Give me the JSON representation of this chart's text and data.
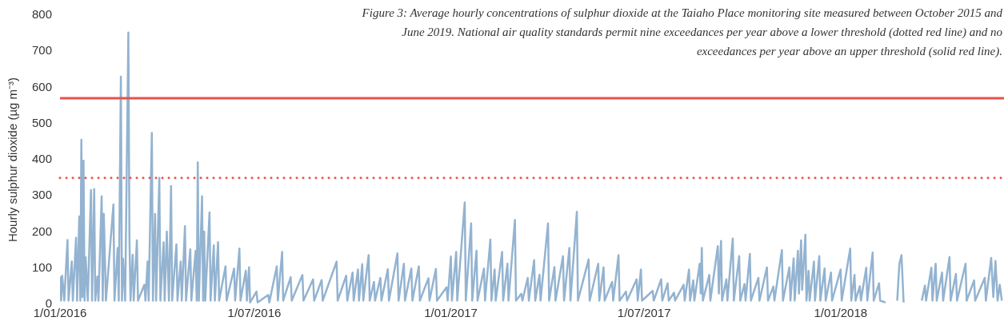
{
  "chart_data": {
    "type": "line",
    "title": "Figure 3: Average hourly concentrations of sulphur dioxide at the Taiaho Place monitoring site measured between October 2015 and June 2019. National air quality standards permit nine exceedances per year above a lower threshold (dotted red line) and no exceedances per year above an upper threshold (solid red line).",
    "ylabel": "Hourly sulphur dioxide (µg m⁻³)",
    "xlim": [
      "2016-01-01",
      "2018-06-03"
    ],
    "xticks": [
      {
        "value": "2016-01-01",
        "label": "1/01/2016"
      },
      {
        "value": "2016-07-01",
        "label": "1/07/2016"
      },
      {
        "value": "2017-01-01",
        "label": "1/01/2017"
      },
      {
        "value": "2017-07-01",
        "label": "1/07/2017"
      },
      {
        "value": "2018-01-01",
        "label": "1/01/2018"
      }
    ],
    "ylim": [
      0,
      800
    ],
    "yticks": [
      0,
      100,
      200,
      300,
      400,
      500,
      600,
      700,
      800
    ],
    "grid": false,
    "legend": false,
    "marker": "none",
    "line_style": "solid",
    "ref_lines": [
      {
        "axis": "y",
        "value": 570,
        "label": null,
        "color": "#e8524a",
        "line_style": "solid"
      },
      {
        "axis": "y",
        "value": 350,
        "label": null,
        "color": "#e8524a",
        "line_style": "dotted"
      }
    ],
    "series": [
      {
        "color": "#93b3d0",
        "x": [
          "2016-01-01",
          "2016-01-02",
          "2016-01-03",
          "2016-01-05",
          "2016-01-08",
          "2016-01-09",
          "2016-01-12",
          "2016-01-13",
          "2016-01-16",
          "2016-01-17",
          "2016-01-19",
          "2016-01-20",
          "2016-01-21",
          "2016-01-22",
          "2016-01-23",
          "2016-01-24",
          "2016-01-25",
          "2016-01-27",
          "2016-01-30",
          "2016-01-31",
          "2016-02-02",
          "2016-02-03",
          "2016-02-05",
          "2016-02-06",
          "2016-02-09",
          "2016-02-10",
          "2016-02-11",
          "2016-02-13",
          "2016-02-20",
          "2016-02-21",
          "2016-02-24",
          "2016-02-25",
          "2016-02-27",
          "2016-02-28",
          "2016-02-29",
          "2016-03-02",
          "2016-03-05",
          "2016-03-06",
          "2016-03-07",
          "2016-03-09",
          "2016-03-10",
          "2016-03-13",
          "2016-03-14",
          "2016-03-20",
          "2016-03-21",
          "2016-03-23",
          "2016-03-24",
          "2016-03-27",
          "2016-03-28",
          "2016-03-30",
          "2016-03-31",
          "2016-04-03",
          "2016-04-04",
          "2016-04-07",
          "2016-04-08",
          "2016-04-10",
          "2016-04-12",
          "2016-04-14",
          "2016-04-15",
          "2016-04-19",
          "2016-04-20",
          "2016-04-23",
          "2016-04-24",
          "2016-04-27",
          "2016-04-28",
          "2016-05-02",
          "2016-05-03",
          "2016-05-07",
          "2016-05-08",
          "2016-05-09",
          "2016-05-10",
          "2016-05-13",
          "2016-05-14",
          "2016-05-15",
          "2016-05-16",
          "2016-05-20",
          "2016-05-21",
          "2016-05-24",
          "2016-05-25",
          "2016-05-28",
          "2016-05-29",
          "2016-06-04",
          "2016-06-05",
          "2016-06-12",
          "2016-06-13",
          "2016-06-17",
          "2016-06-18",
          "2016-06-23",
          "2016-06-24",
          "2016-06-26",
          "2016-06-27",
          "2016-07-03",
          "2016-07-04",
          "2016-07-14",
          "2016-07-15",
          "2016-07-22",
          "2016-07-23",
          "2016-07-27",
          "2016-07-28",
          "2016-08-04",
          "2016-08-05",
          "2016-08-15",
          "2016-08-16",
          "2016-08-25",
          "2016-08-26",
          "2016-09-02",
          "2016-09-03",
          "2016-09-16",
          "2016-09-17",
          "2016-09-25",
          "2016-09-26",
          "2016-10-01",
          "2016-10-02",
          "2016-10-06",
          "2016-10-07",
          "2016-10-10",
          "2016-10-11",
          "2016-10-16",
          "2016-10-17",
          "2016-10-21",
          "2016-10-22",
          "2016-10-27",
          "2016-10-28",
          "2016-11-03",
          "2016-11-04",
          "2016-11-12",
          "2016-11-13",
          "2016-11-18",
          "2016-11-19",
          "2016-11-25",
          "2016-11-26",
          "2016-12-02",
          "2016-12-03",
          "2016-12-11",
          "2016-12-12",
          "2016-12-18",
          "2016-12-19",
          "2016-12-28",
          "2016-12-29",
          "2017-01-01",
          "2017-01-02",
          "2017-01-06",
          "2017-01-07",
          "2017-01-14",
          "2017-01-15",
          "2017-01-20",
          "2017-01-21",
          "2017-01-25",
          "2017-01-26",
          "2017-02-01",
          "2017-02-02",
          "2017-02-07",
          "2017-02-08",
          "2017-02-11",
          "2017-02-12",
          "2017-02-18",
          "2017-02-19",
          "2017-02-23",
          "2017-02-24",
          "2017-03-02",
          "2017-03-03",
          "2017-03-08",
          "2017-03-09",
          "2017-03-14",
          "2017-03-15",
          "2017-03-20",
          "2017-03-21",
          "2017-03-25",
          "2017-03-26",
          "2017-04-02",
          "2017-04-03",
          "2017-04-08",
          "2017-04-09",
          "2017-04-16",
          "2017-04-17",
          "2017-04-22",
          "2017-04-23",
          "2017-04-29",
          "2017-04-30",
          "2017-05-10",
          "2017-05-11",
          "2017-05-19",
          "2017-05-20",
          "2017-05-24",
          "2017-05-25",
          "2017-06-01",
          "2017-06-02",
          "2017-06-07",
          "2017-06-08",
          "2017-06-14",
          "2017-06-15",
          "2017-06-24",
          "2017-06-25",
          "2017-06-28",
          "2017-06-29",
          "2017-07-09",
          "2017-07-10",
          "2017-07-17",
          "2017-07-18",
          "2017-07-23",
          "2017-07-24",
          "2017-07-29",
          "2017-07-30",
          "2017-08-07",
          "2017-08-08",
          "2017-08-12",
          "2017-08-13",
          "2017-08-16",
          "2017-08-17",
          "2017-08-22",
          "2017-08-23",
          "2017-08-24",
          "2017-08-25",
          "2017-08-31",
          "2017-09-01",
          "2017-09-08",
          "2017-09-09",
          "2017-09-11",
          "2017-09-12",
          "2017-09-16",
          "2017-09-17",
          "2017-09-22",
          "2017-09-23",
          "2017-09-28",
          "2017-09-29",
          "2017-10-03",
          "2017-10-04",
          "2017-10-08",
          "2017-10-09",
          "2017-10-16",
          "2017-10-17",
          "2017-10-24",
          "2017-10-25",
          "2017-10-30",
          "2017-10-31",
          "2017-11-07",
          "2017-11-08",
          "2017-11-14",
          "2017-11-15",
          "2017-11-18",
          "2017-11-19",
          "2017-11-22",
          "2017-11-23",
          "2017-11-25",
          "2017-11-26",
          "2017-11-29",
          "2017-11-30",
          "2017-12-02",
          "2017-12-03",
          "2017-12-07",
          "2017-12-08",
          "2017-12-12",
          "2017-12-13",
          "2017-12-17",
          "2017-12-18",
          "2017-12-23",
          "2017-12-24",
          "2018-01-01",
          "2018-01-02",
          "2018-01-10",
          "2018-01-11",
          "2018-01-14",
          "2018-01-15",
          "2018-01-19",
          "2018-01-20",
          "2018-01-25",
          "2018-01-26",
          "2018-01-31",
          "2018-02-01",
          "2018-02-06",
          "2018-02-07",
          "2018-02-12",
          "2018-02-17",
          "2018-02-23",
          "2018-02-25",
          "2018-02-27",
          "2018-03-01",
          "2018-03-10",
          "2018-03-18",
          "2018-03-21",
          "2018-03-22",
          "2018-03-27",
          "2018-03-28",
          "2018-03-31",
          "2018-04-01",
          "2018-04-06",
          "2018-04-07",
          "2018-04-13",
          "2018-04-14",
          "2018-04-19",
          "2018-04-20",
          "2018-04-28",
          "2018-04-29",
          "2018-05-06",
          "2018-05-07",
          "2018-05-16",
          "2018-05-17",
          "2018-05-22",
          "2018-05-24",
          "2018-05-26",
          "2018-05-28",
          "2018-05-30",
          "2018-06-01"
        ],
        "values": [
          77,
          10,
          79,
          10,
          178,
          10,
          118,
          10,
          184,
          10,
          243,
          10,
          455,
          20,
          397,
          10,
          130,
          10,
          316,
          10,
          319,
          10,
          77,
          10,
          299,
          10,
          250,
          10,
          276,
          10,
          156,
          10,
          630,
          10,
          126,
          10,
          752,
          186,
          10,
          137,
          10,
          177,
          10,
          54,
          10,
          118,
          10,
          474,
          10,
          250,
          10,
          350,
          10,
          171,
          10,
          201,
          10,
          327,
          10,
          166,
          10,
          118,
          10,
          216,
          10,
          152,
          10,
          148,
          10,
          393,
          10,
          299,
          10,
          201,
          10,
          254,
          10,
          163,
          10,
          172,
          10,
          105,
          10,
          99,
          10,
          154,
          10,
          93,
          10,
          102,
          5,
          35,
          5,
          26,
          5,
          105,
          10,
          145,
          10,
          75,
          10,
          81,
          10,
          69,
          10,
          67,
          10,
          118,
          10,
          79,
          10,
          88,
          10,
          96,
          10,
          111,
          10,
          136,
          10,
          62,
          10,
          73,
          10,
          97,
          10,
          141,
          10,
          112,
          10,
          99,
          10,
          105,
          10,
          72,
          10,
          98,
          10,
          47,
          10,
          132,
          10,
          145,
          10,
          282,
          10,
          224,
          10,
          148,
          10,
          99,
          10,
          179,
          10,
          96,
          10,
          145,
          10,
          112,
          10,
          233,
          10,
          29,
          10,
          73,
          10,
          122,
          10,
          82,
          10,
          224,
          10,
          103,
          10,
          133,
          10,
          156,
          10,
          256,
          10,
          124,
          10,
          112,
          10,
          102,
          10,
          62,
          10,
          136,
          10,
          35,
          10,
          69,
          10,
          96,
          10,
          37,
          10,
          69,
          10,
          58,
          10,
          32,
          10,
          54,
          10,
          96,
          10,
          66,
          10,
          112,
          30,
          156,
          10,
          81,
          10,
          161,
          30,
          175,
          10,
          69,
          10,
          182,
          10,
          133,
          10,
          56,
          10,
          139,
          10,
          73,
          10,
          102,
          10,
          49,
          10,
          150,
          10,
          102,
          10,
          127,
          10,
          148,
          30,
          177,
          40,
          192,
          10,
          92,
          10,
          118,
          10,
          133,
          10,
          99,
          10,
          88,
          10,
          96,
          10,
          154,
          10,
          81,
          10,
          50,
          10,
          101,
          10,
          143,
          10,
          58,
          10,
          5,
          null,
          10,
          111,
          136,
          5,
          null,
          10,
          52,
          10,
          101,
          10,
          112,
          10,
          88,
          10,
          131,
          10,
          84,
          10,
          112,
          10,
          66,
          10,
          73,
          10,
          128,
          20,
          120,
          10,
          54,
          10
        ]
      }
    ]
  }
}
